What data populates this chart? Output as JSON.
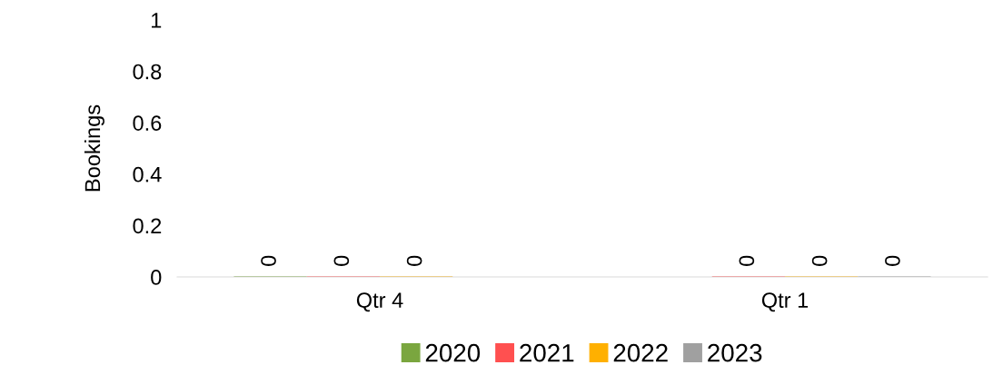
{
  "chart_data": {
    "type": "bar",
    "ylabel": "Bookings",
    "categories": [
      "Qtr 4",
      "Qtr 1"
    ],
    "series": [
      {
        "name": "2020",
        "color": "#7aa63f",
        "values": [
          0,
          null
        ]
      },
      {
        "name": "2021",
        "color": "#ff5050",
        "values": [
          0,
          0
        ]
      },
      {
        "name": "2022",
        "color": "#ffb000",
        "values": [
          0,
          0
        ]
      },
      {
        "name": "2023",
        "color": "#a0a0a0",
        "values": [
          null,
          0
        ]
      }
    ],
    "ylim": [
      0,
      1
    ],
    "yticks": [
      0,
      0.2,
      0.4,
      0.6,
      0.8,
      1
    ],
    "grid": false,
    "legend": "bottom",
    "data_labels": true
  }
}
